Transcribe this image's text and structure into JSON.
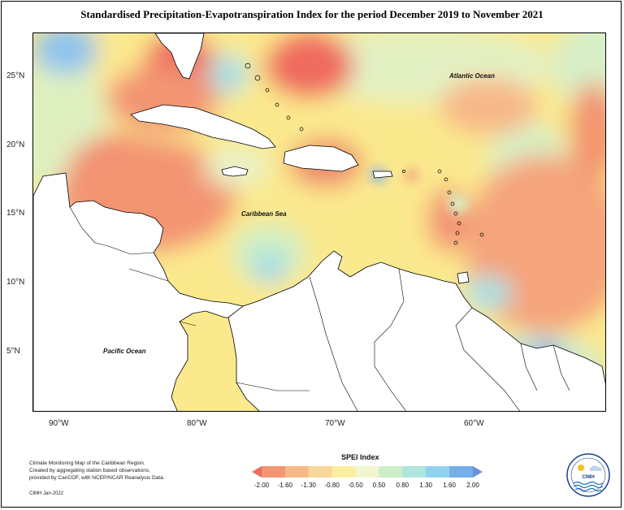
{
  "title": "Standardised Precipitation-Evapotranspiration Index for the period December 2019 to November 2021",
  "map": {
    "ocean_labels": [
      "Atlantic Ocean",
      "Caribbean Sea",
      "Pacific Ocean"
    ],
    "lat_ticks": [
      "25°N",
      "20°N",
      "15°N",
      "10°N",
      "5°N"
    ],
    "lon_ticks": [
      "90°W",
      "80°W",
      "70°W",
      "60°W"
    ]
  },
  "legend": {
    "title": "SPEI Index",
    "labels": [
      "-2.00",
      "-1.60",
      "-1.30",
      "-0.80",
      "-0.50",
      "0.50",
      "0.80",
      "1.30",
      "1.60",
      "2.00"
    ],
    "colors": [
      "#ef6b5f",
      "#f39473",
      "#f7b888",
      "#f9d79a",
      "#fbef9e",
      "#f1f6cf",
      "#cdeec6",
      "#aee5df",
      "#8fd3ee",
      "#75aee9",
      "#6d8fd8"
    ]
  },
  "credits": {
    "lines": [
      "Climate Monitoring Map of the Caribbean Region.",
      "Created by aggregating station based observations,",
      "provided by CariCOF, with NCEP/NCAR Reanalysis Data."
    ],
    "signature": "CIMH Jan-2022"
  },
  "logo": {
    "text": "CIMH"
  }
}
